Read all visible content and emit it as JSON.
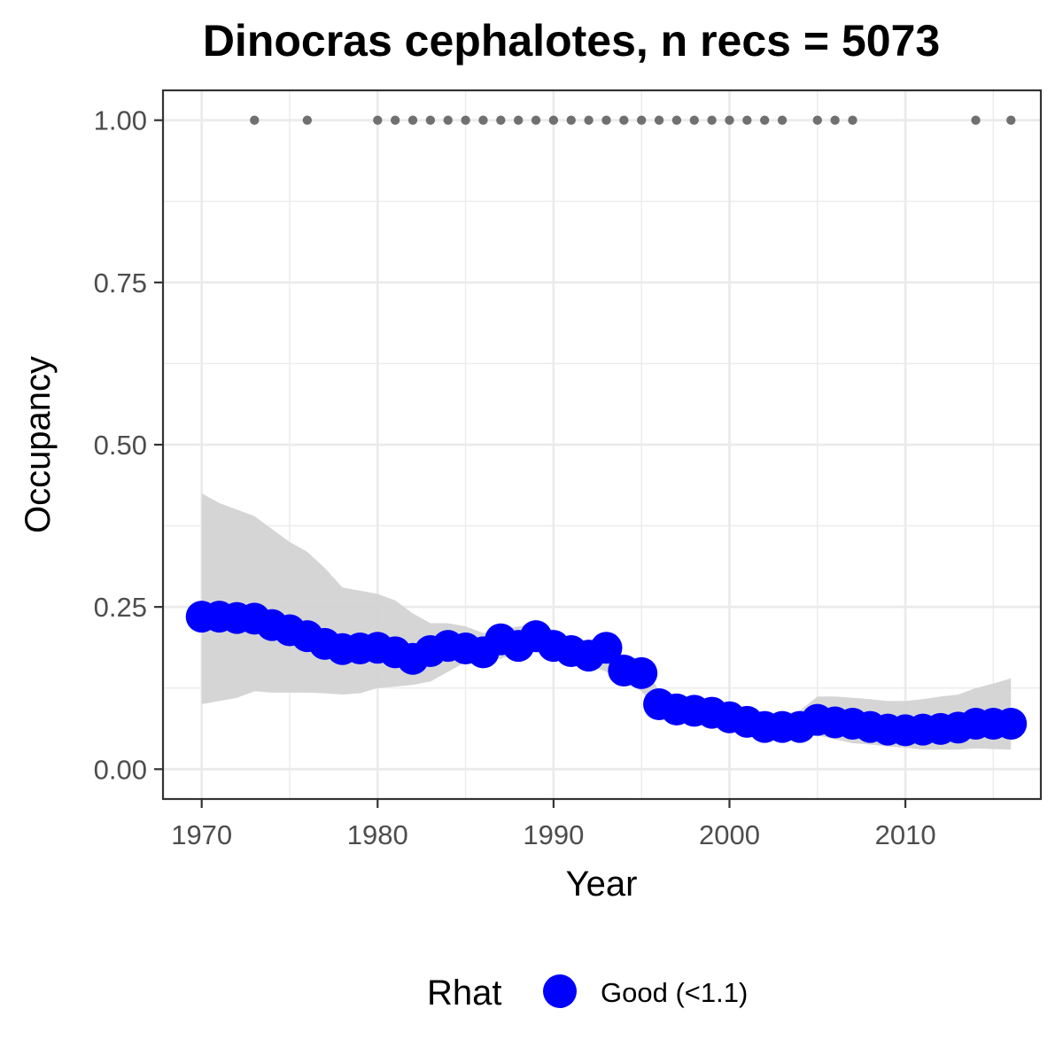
{
  "chart_data": {
    "type": "line",
    "title": "Dinocras cephalotes, n recs = 5073",
    "xlabel": "Year",
    "ylabel": "Occupancy",
    "xlim": [
      1967.8,
      2017.7
    ],
    "ylim": [
      -0.046,
      1.046
    ],
    "x_ticks": [
      1970,
      1980,
      1990,
      2000,
      2010
    ],
    "x_tick_labels": [
      "1970",
      "1980",
      "1990",
      "2000",
      "2010"
    ],
    "x_minor_ticks": [
      1975,
      1985,
      1995,
      2005,
      2015
    ],
    "y_ticks": [
      0,
      0.25,
      0.5,
      0.75,
      1
    ],
    "y_tick_labels": [
      "0.00",
      "0.25",
      "0.50",
      "0.75",
      "1.00"
    ],
    "y_minor_ticks": [
      0.125,
      0.375,
      0.625,
      0.875
    ],
    "grid": true,
    "legend_position": "bottom",
    "legend_title": "Rhat",
    "legend_entries": [
      {
        "label": "Good (<1.1)",
        "color": "#0000ff"
      }
    ],
    "colors": {
      "points": "#0000ff",
      "ribbon": "#d3d3d3",
      "records": "#707070",
      "grid": "#ebebeb",
      "panel_border": "#333333",
      "tick_label": "#4d4d4d"
    },
    "series": [
      {
        "name": "Good (<1.1)",
        "x": [
          1970,
          1971,
          1972,
          1973,
          1974,
          1975,
          1976,
          1977,
          1978,
          1979,
          1980,
          1981,
          1982,
          1983,
          1984,
          1985,
          1986,
          1987,
          1988,
          1989,
          1990,
          1991,
          1992,
          1993,
          1994,
          1995,
          1996,
          1997,
          1998,
          1999,
          2000,
          2001,
          2002,
          2003,
          2004,
          2005,
          2006,
          2007,
          2008,
          2009,
          2010,
          2011,
          2012,
          2013,
          2014,
          2015,
          2016
        ],
        "y": [
          0.235,
          0.235,
          0.233,
          0.232,
          0.222,
          0.214,
          0.205,
          0.193,
          0.185,
          0.186,
          0.187,
          0.18,
          0.17,
          0.182,
          0.19,
          0.186,
          0.18,
          0.2,
          0.19,
          0.205,
          0.19,
          0.182,
          0.175,
          0.187,
          0.152,
          0.148,
          0.1,
          0.092,
          0.09,
          0.087,
          0.08,
          0.073,
          0.065,
          0.065,
          0.065,
          0.076,
          0.072,
          0.07,
          0.065,
          0.061,
          0.06,
          0.061,
          0.062,
          0.064,
          0.07,
          0.07,
          0.07
        ]
      }
    ],
    "ribbon": {
      "x": [
        1970,
        1971,
        1972,
        1973,
        1974,
        1975,
        1976,
        1977,
        1978,
        1979,
        1980,
        1981,
        1982,
        1983,
        1984,
        1985,
        1986,
        1987,
        1988,
        1989,
        1990,
        1991,
        1992,
        1993,
        1994,
        1995,
        1996,
        1997,
        1998,
        1999,
        2000,
        2001,
        2002,
        2003,
        2004,
        2005,
        2006,
        2007,
        2008,
        2009,
        2010,
        2011,
        2012,
        2013,
        2014,
        2015,
        2016
      ],
      "lower": [
        0.1,
        0.105,
        0.11,
        0.12,
        0.118,
        0.118,
        0.118,
        0.117,
        0.115,
        0.117,
        0.125,
        0.127,
        0.13,
        0.135,
        0.15,
        0.165,
        0.17,
        0.17,
        0.18,
        0.18,
        0.17,
        0.165,
        0.16,
        0.15,
        0.135,
        0.12,
        0.085,
        0.078,
        0.075,
        0.07,
        0.065,
        0.058,
        0.05,
        0.048,
        0.047,
        0.052,
        0.046,
        0.04,
        0.038,
        0.035,
        0.033,
        0.03,
        0.03,
        0.03,
        0.032,
        0.031,
        0.03
      ],
      "upper": [
        0.425,
        0.41,
        0.4,
        0.39,
        0.37,
        0.35,
        0.335,
        0.31,
        0.28,
        0.275,
        0.27,
        0.26,
        0.24,
        0.225,
        0.225,
        0.22,
        0.21,
        0.215,
        0.22,
        0.225,
        0.215,
        0.2,
        0.195,
        0.2,
        0.175,
        0.17,
        0.12,
        0.115,
        0.11,
        0.105,
        0.098,
        0.092,
        0.085,
        0.085,
        0.09,
        0.112,
        0.112,
        0.11,
        0.108,
        0.105,
        0.105,
        0.108,
        0.112,
        0.115,
        0.125,
        0.132,
        0.14
      ]
    },
    "record_years": [
      1973,
      1976,
      1980,
      1981,
      1982,
      1983,
      1984,
      1985,
      1986,
      1987,
      1988,
      1989,
      1990,
      1991,
      1992,
      1993,
      1994,
      1995,
      1996,
      1997,
      1998,
      1999,
      2000,
      2001,
      2002,
      2003,
      2005,
      2006,
      2007,
      2014,
      2016
    ],
    "record_value": 1.0
  }
}
